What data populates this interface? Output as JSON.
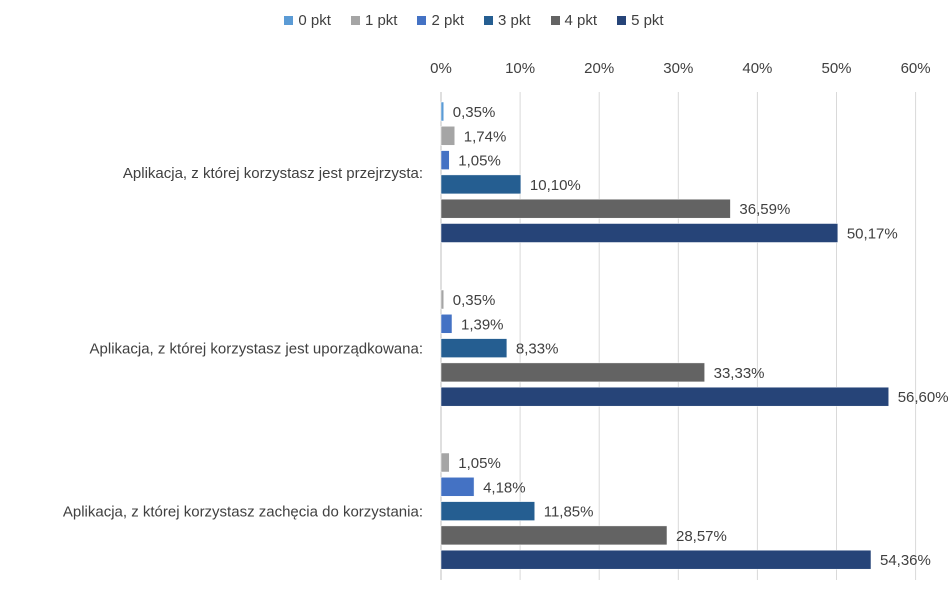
{
  "chart_data": {
    "type": "bar",
    "orientation": "horizontal",
    "categories": [
      "Aplikacja, z której korzystasz jest przejrzysta:",
      "Aplikacja, z której korzystasz jest uporządkowana:",
      "Aplikacja, z której korzystasz zachęcia do korzystania:"
    ],
    "series": [
      {
        "name": "0 pkt",
        "color": "#5b9bd5",
        "values": [
          0.35,
          null,
          null
        ],
        "labels": [
          "0,35%",
          "",
          ""
        ]
      },
      {
        "name": "1 pkt",
        "color": "#a5a5a5",
        "values": [
          1.74,
          0.35,
          1.05
        ],
        "labels": [
          "1,74%",
          "0,35%",
          "1,05%"
        ]
      },
      {
        "name": "2 pkt",
        "color": "#4472c4",
        "values": [
          1.05,
          1.39,
          4.18
        ],
        "labels": [
          "1,05%",
          "1,39%",
          "4,18%"
        ]
      },
      {
        "name": "3 pkt",
        "color": "#255e91",
        "values": [
          10.1,
          8.33,
          11.85
        ],
        "labels": [
          "10,10%",
          "8,33%",
          "11,85%"
        ]
      },
      {
        "name": "4 pkt",
        "color": "#636363",
        "values": [
          36.59,
          33.33,
          28.57
        ],
        "labels": [
          "36,59%",
          "33,33%",
          "28,57%"
        ]
      },
      {
        "name": "5 pkt",
        "color": "#264478",
        "values": [
          50.17,
          56.6,
          54.36
        ],
        "labels": [
          "50,17%",
          "56,60%",
          "54,36%"
        ]
      }
    ],
    "xticks": [
      "0%",
      "10%",
      "20%",
      "30%",
      "40%",
      "50%",
      "60%"
    ],
    "xlim": [
      0,
      60
    ],
    "title": "",
    "xlabel": "",
    "ylabel": "",
    "grid": true,
    "legend_position": "top"
  }
}
